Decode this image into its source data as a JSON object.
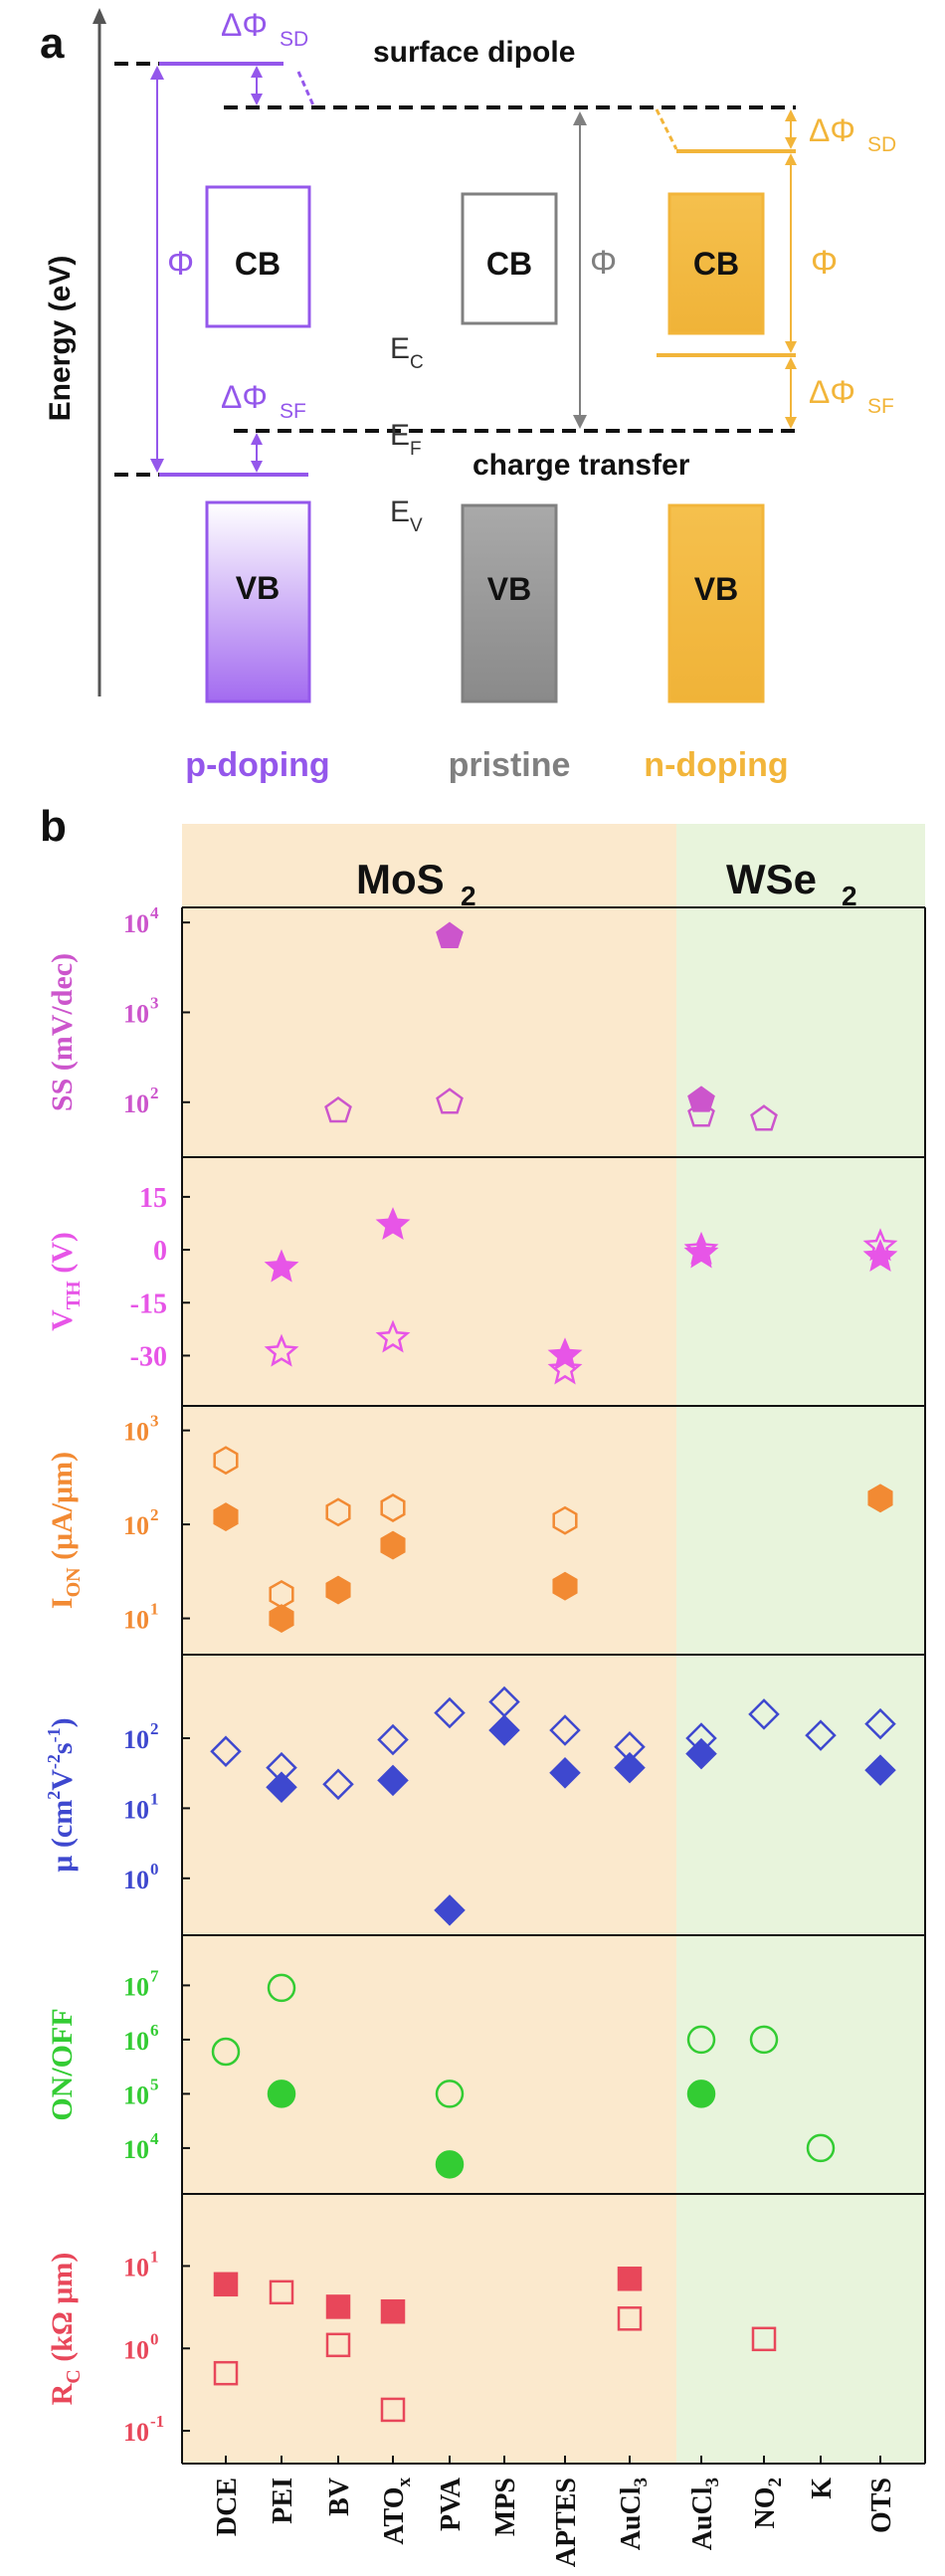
{
  "panel_a": {
    "label": "a",
    "y_axis_label": "Energy (eV)",
    "surface_dipole": "surface dipole",
    "charge_transfer": "charge transfer",
    "phi": "Φ",
    "d_phi": "ΔΦ",
    "sub_sd": "SD",
    "sub_sf": "SF",
    "cb": "CB",
    "vb": "VB",
    "ec_main": "E",
    "ec_sub": "C",
    "ef_main": "E",
    "ef_sub": "F",
    "ev_main": "E",
    "ev_sub": "V",
    "doping_labels": [
      "p-doping",
      "pristine",
      "n-doping"
    ],
    "colors": {
      "p": "#9457eb",
      "pristine": "#808080",
      "n": "#f2b53a",
      "black": "#111111"
    }
  },
  "panel_b": {
    "label": "b",
    "group_labels": [
      {
        "main": "MoS",
        "sub": "2"
      },
      {
        "main": "WSe",
        "sub": "2"
      }
    ],
    "group_colors": {
      "MoS2": "#fbe9cd",
      "WSe2": "#e8f4dc"
    },
    "categories": [
      {
        "main": "DCE",
        "sub": ""
      },
      {
        "main": "PEI",
        "sub": ""
      },
      {
        "main": "BV",
        "sub": ""
      },
      {
        "main": "ATO",
        "sub": "x"
      },
      {
        "main": "PVA",
        "sub": ""
      },
      {
        "main": "MPS",
        "sub": ""
      },
      {
        "main": "APTES",
        "sub": ""
      },
      {
        "main": "AuCl",
        "sub": "3"
      },
      {
        "main": "AuCl",
        "sub": "3"
      },
      {
        "main": "NO",
        "sub": "2"
      },
      {
        "main": "K",
        "sub": ""
      },
      {
        "main": "OTS",
        "sub": ""
      }
    ]
  },
  "chart_data": [
    {
      "type": "scatter",
      "ylabel": "SS (mV/dec)",
      "scale": "log",
      "ylim": [
        30,
        12000
      ],
      "ticks": [
        {
          "v": 100,
          "b": "10",
          "e": "2"
        },
        {
          "v": 1000,
          "b": "10",
          "e": "3"
        },
        {
          "v": 10000,
          "b": "10",
          "e": "4"
        }
      ],
      "color": "#cc55cc",
      "marker": "pentagon",
      "series": [
        {
          "filled": true,
          "points": [
            [
              4,
              7000
            ],
            [
              8,
              105
            ]
          ]
        },
        {
          "filled": false,
          "points": [
            [
              2,
              80
            ],
            [
              4,
              100
            ],
            [
              8,
              72
            ],
            [
              9,
              65
            ]
          ]
        }
      ]
    },
    {
      "type": "scatter",
      "ylabel": "V_TH (V)",
      "ylabel_main": "V",
      "ylabel_sub": "TH",
      "ylabel_rest": " (V)",
      "scale": "linear",
      "ylim": [
        -42,
        24
      ],
      "ticks": [
        {
          "v": 15,
          "t": "15"
        },
        {
          "v": 0,
          "t": "0"
        },
        {
          "v": -15,
          "t": "-15"
        },
        {
          "v": -30,
          "t": "-30"
        }
      ],
      "color": "#e755e7",
      "marker": "star",
      "series": [
        {
          "filled": true,
          "points": [
            [
              1,
              -5
            ],
            [
              3,
              7
            ],
            [
              6,
              -30
            ],
            [
              8,
              -1
            ],
            [
              11,
              -2
            ]
          ]
        },
        {
          "filled": false,
          "points": [
            [
              1,
              -29
            ],
            [
              3,
              -25
            ],
            [
              6,
              -34
            ],
            [
              8,
              0
            ],
            [
              11,
              1
            ]
          ]
        }
      ]
    },
    {
      "type": "scatter",
      "ylabel": "I_ON (μA/μm)",
      "ylabel_main": "I",
      "ylabel_sub": "ON",
      "ylabel_rest": " (μA/μm)",
      "scale": "log",
      "ylim": [
        5,
        1500
      ],
      "ticks": [
        {
          "v": 10,
          "b": "10",
          "e": "1"
        },
        {
          "v": 100,
          "b": "10",
          "e": "2"
        },
        {
          "v": 1000,
          "b": "10",
          "e": "3"
        }
      ],
      "color": "#f28a33",
      "marker": "hexagon",
      "series": [
        {
          "filled": true,
          "points": [
            [
              0,
              120
            ],
            [
              1,
              10
            ],
            [
              2,
              20
            ],
            [
              3,
              60
            ],
            [
              6,
              22
            ],
            [
              11,
              190
            ]
          ]
        },
        {
          "filled": false,
          "points": [
            [
              0,
              480
            ],
            [
              1,
              18
            ],
            [
              2,
              135
            ],
            [
              3,
              150
            ],
            [
              6,
              110
            ]
          ]
        }
      ]
    },
    {
      "type": "scatter",
      "ylabel": "μ (cm²V⁻²s⁻¹)",
      "ylabel_text": "μ (cm",
      "ylabel_sup1": "2",
      "ylabel_mid": "V",
      "ylabel_sup2": "-2",
      "ylabel_mid2": "s",
      "ylabel_sup3": "-1",
      "ylabel_end": ")",
      "scale": "log",
      "ylim": [
        0.2,
        1200
      ],
      "ticks": [
        {
          "v": 1,
          "b": "10",
          "e": "0"
        },
        {
          "v": 10,
          "b": "10",
          "e": "1"
        },
        {
          "v": 100,
          "b": "10",
          "e": "2"
        }
      ],
      "color": "#3e48cf",
      "marker": "diamond",
      "series": [
        {
          "filled": true,
          "points": [
            [
              1,
              20
            ],
            [
              3,
              25
            ],
            [
              4,
              0.35
            ],
            [
              5,
              130
            ],
            [
              6,
              32
            ],
            [
              7,
              38
            ],
            [
              8,
              60
            ],
            [
              11,
              35
            ]
          ]
        },
        {
          "filled": false,
          "points": [
            [
              0,
              65
            ],
            [
              1,
              38
            ],
            [
              2,
              22
            ],
            [
              3,
              95
            ],
            [
              4,
              230
            ],
            [
              5,
              330
            ],
            [
              6,
              130
            ],
            [
              7,
              75
            ],
            [
              8,
              100
            ],
            [
              9,
              220
            ],
            [
              10,
              110
            ],
            [
              11,
              160
            ]
          ]
        }
      ]
    },
    {
      "type": "scatter",
      "ylabel": "ON/OFF",
      "scale": "log",
      "ylim": [
        2000,
        60000000
      ],
      "ticks": [
        {
          "v": 10000,
          "b": "10",
          "e": "4"
        },
        {
          "v": 100000,
          "b": "10",
          "e": "5"
        },
        {
          "v": 1000000,
          "b": "10",
          "e": "6"
        },
        {
          "v": 10000000,
          "b": "10",
          "e": "7"
        }
      ],
      "color": "#33cc33",
      "marker": "circle",
      "series": [
        {
          "filled": true,
          "points": [
            [
              1,
              100000
            ],
            [
              4,
              5000
            ],
            [
              8,
              100000
            ]
          ]
        },
        {
          "filled": false,
          "points": [
            [
              0,
              600000
            ],
            [
              1,
              9000000
            ],
            [
              4,
              100000
            ],
            [
              8,
              1000000
            ],
            [
              9,
              1000000
            ],
            [
              10,
              10000
            ]
          ]
        }
      ]
    },
    {
      "type": "scatter",
      "ylabel": "R_C (kΩ μm)",
      "ylabel_main": "R",
      "ylabel_sub": "C",
      "ylabel_rest": " (kΩ μm)",
      "scale": "log",
      "ylim": [
        0.05,
        60
      ],
      "ticks": [
        {
          "v": 0.1,
          "b": "10",
          "e": "-1"
        },
        {
          "v": 1,
          "b": "10",
          "e": "0"
        },
        {
          "v": 10,
          "b": "10",
          "e": "1"
        }
      ],
      "color": "#e8475a",
      "marker": "square",
      "series": [
        {
          "filled": true,
          "points": [
            [
              0,
              6
            ],
            [
              2,
              3.2
            ],
            [
              3,
              2.8
            ],
            [
              7,
              7
            ]
          ]
        },
        {
          "filled": false,
          "points": [
            [
              0,
              0.5
            ],
            [
              1,
              4.8
            ],
            [
              2,
              1.1
            ],
            [
              3,
              0.18
            ],
            [
              7,
              2.3
            ],
            [
              9,
              1.3
            ]
          ]
        }
      ]
    }
  ]
}
